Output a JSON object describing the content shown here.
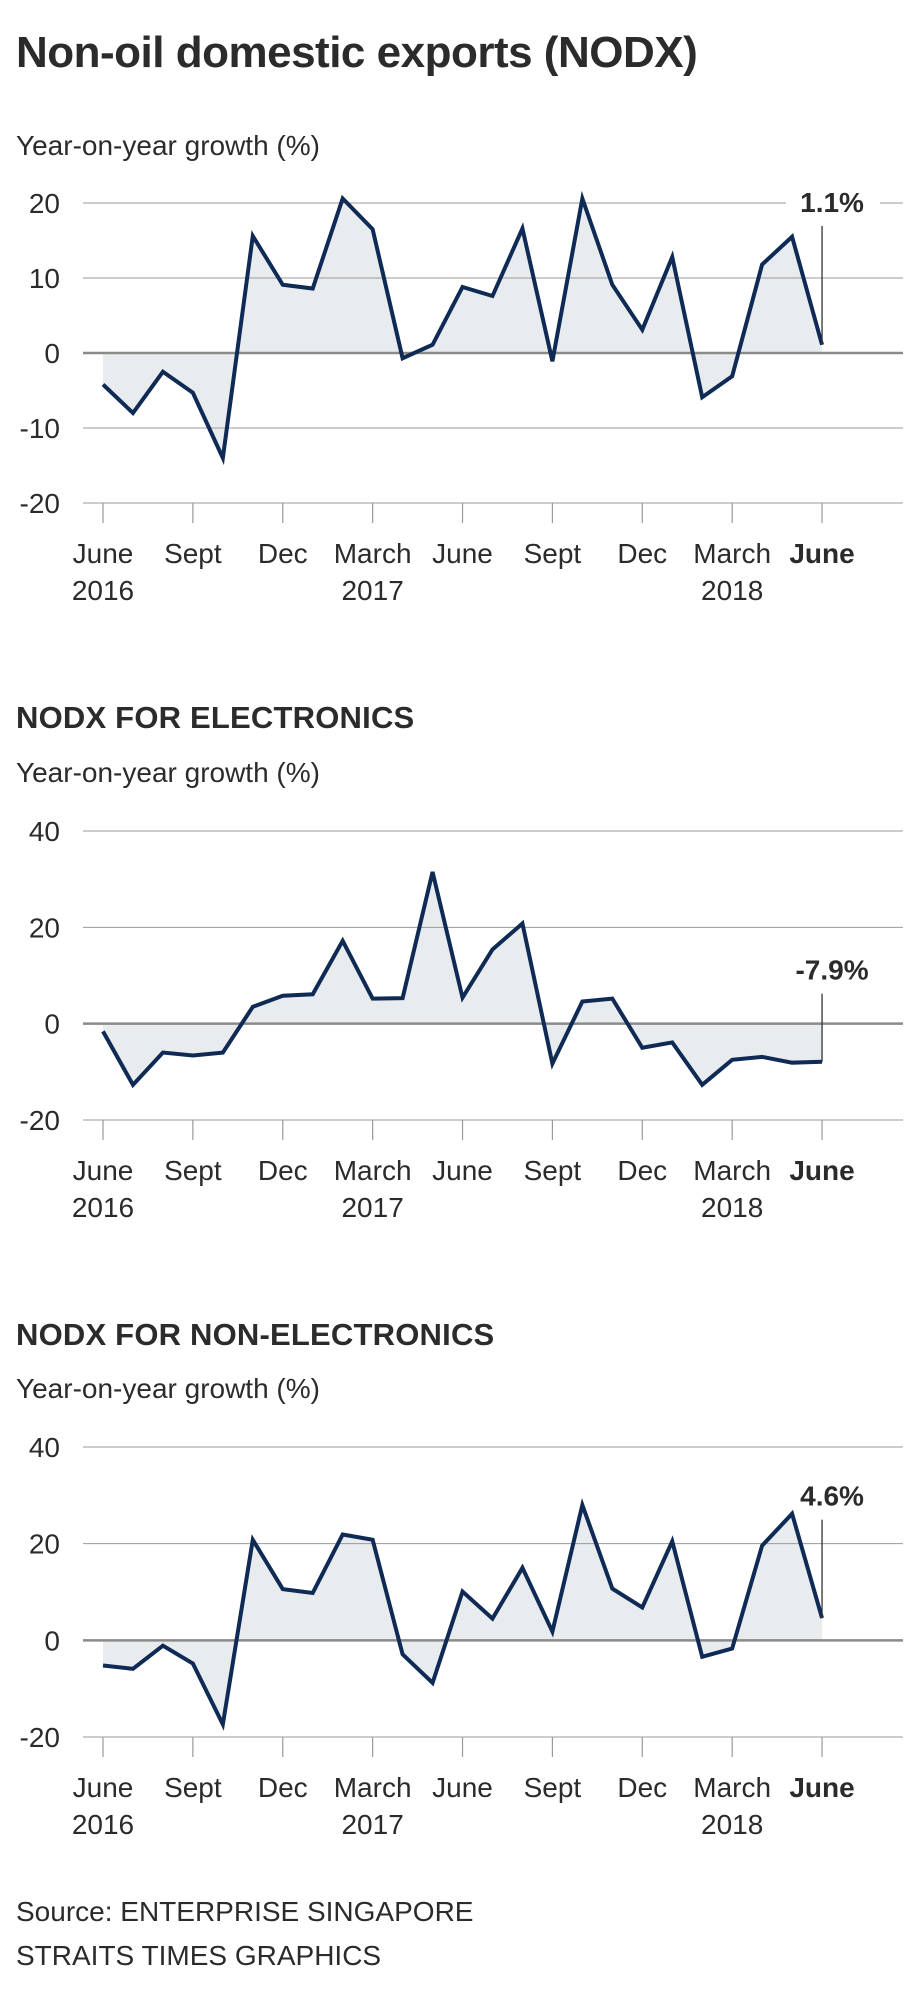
{
  "title": "Non-oil domestic exports (NODX)",
  "source": "Source: ENTERPRISE SINGAPORE",
  "credit": "STRAITS TIMES GRAPHICS",
  "colors": {
    "line": "#0f2a55",
    "fill": "#e8ecee",
    "grid": "#9a9a9a",
    "zero": "#8a8a8a",
    "text": "#2b2b2b"
  },
  "chart_data": [
    {
      "type": "area",
      "title": "",
      "ylabel": "Year-on-year growth (%)",
      "xlabel": "",
      "ylim": [
        -20,
        20
      ],
      "yticks": [
        20,
        10,
        0,
        -10,
        -20
      ],
      "grid": true,
      "x": [
        "Jun 2016",
        "Jul 2016",
        "Aug 2016",
        "Sep 2016",
        "Oct 2016",
        "Nov 2016",
        "Dec 2016",
        "Jan 2017",
        "Feb 2017",
        "Mar 2017",
        "Apr 2017",
        "May 2017",
        "Jun 2017",
        "Jul 2017",
        "Aug 2017",
        "Sep 2017",
        "Oct 2017",
        "Nov 2017",
        "Dec 2017",
        "Jan 2018",
        "Feb 2018",
        "Mar 2018",
        "Apr 2018",
        "May 2018",
        "Jun 2018"
      ],
      "values": [
        -4.2,
        -8.0,
        -2.5,
        -5.3,
        -14.0,
        15.6,
        9.1,
        8.6,
        20.6,
        16.5,
        -0.7,
        1.1,
        8.8,
        7.6,
        16.6,
        -1.1,
        20.6,
        9.1,
        3.1,
        12.8,
        -5.9,
        -3.1,
        11.8,
        15.5,
        1.1
      ],
      "xtick_labels": [
        {
          "index": 0,
          "month": "June",
          "year": "2016",
          "bold": false
        },
        {
          "index": 3,
          "month": "Sept",
          "year": "",
          "bold": false
        },
        {
          "index": 6,
          "month": "Dec",
          "year": "",
          "bold": false
        },
        {
          "index": 9,
          "month": "March",
          "year": "2017",
          "bold": false
        },
        {
          "index": 12,
          "month": "June",
          "year": "",
          "bold": false
        },
        {
          "index": 15,
          "month": "Sept",
          "year": "",
          "bold": false
        },
        {
          "index": 18,
          "month": "Dec",
          "year": "",
          "bold": false
        },
        {
          "index": 21,
          "month": "March",
          "year": "2018",
          "bold": false
        },
        {
          "index": 24,
          "month": "June",
          "year": "",
          "bold": true
        }
      ],
      "annotation": {
        "index": 24,
        "text": "1.1%"
      }
    },
    {
      "type": "area",
      "title": "NODX FOR ELECTRONICS",
      "ylabel": "Year-on-year growth (%)",
      "xlabel": "",
      "ylim": [
        -20,
        40
      ],
      "yticks": [
        40,
        20,
        0,
        -20
      ],
      "grid": true,
      "x": [
        "Jun 2016",
        "Jul 2016",
        "Aug 2016",
        "Sep 2016",
        "Oct 2016",
        "Nov 2016",
        "Dec 2016",
        "Jan 2017",
        "Feb 2017",
        "Mar 2017",
        "Apr 2017",
        "May 2017",
        "Jun 2017",
        "Jul 2017",
        "Aug 2017",
        "Sep 2017",
        "Oct 2017",
        "Nov 2017",
        "Dec 2017",
        "Jan 2018",
        "Feb 2018",
        "Mar 2018",
        "Apr 2018",
        "May 2018",
        "Jun 2018"
      ],
      "values": [
        -1.6,
        -12.7,
        -6.0,
        -6.6,
        -6.0,
        3.5,
        5.8,
        6.1,
        17.2,
        5.2,
        5.3,
        31.5,
        5.4,
        15.4,
        20.8,
        -8.3,
        4.6,
        5.2,
        -5.0,
        -3.9,
        -12.7,
        -7.5,
        -6.9,
        -8.1,
        -7.9
      ],
      "xtick_labels": [
        {
          "index": 0,
          "month": "June",
          "year": "2016",
          "bold": false
        },
        {
          "index": 3,
          "month": "Sept",
          "year": "",
          "bold": false
        },
        {
          "index": 6,
          "month": "Dec",
          "year": "",
          "bold": false
        },
        {
          "index": 9,
          "month": "March",
          "year": "2017",
          "bold": false
        },
        {
          "index": 12,
          "month": "June",
          "year": "",
          "bold": false
        },
        {
          "index": 15,
          "month": "Sept",
          "year": "",
          "bold": false
        },
        {
          "index": 18,
          "month": "Dec",
          "year": "",
          "bold": false
        },
        {
          "index": 21,
          "month": "March",
          "year": "2018",
          "bold": false
        },
        {
          "index": 24,
          "month": "June",
          "year": "",
          "bold": true
        }
      ],
      "annotation": {
        "index": 24,
        "text": "-7.9%"
      }
    },
    {
      "type": "area",
      "title": "NODX FOR NON-ELECTRONICS",
      "ylabel": "Year-on-year growth (%)",
      "xlabel": "",
      "ylim": [
        -20,
        40
      ],
      "yticks": [
        40,
        20,
        0,
        -20
      ],
      "grid": true,
      "x": [
        "Jun 2016",
        "Jul 2016",
        "Aug 2016",
        "Sep 2016",
        "Oct 2016",
        "Nov 2016",
        "Dec 2016",
        "Jan 2017",
        "Feb 2017",
        "Mar 2017",
        "Apr 2017",
        "May 2017",
        "Jun 2017",
        "Jul 2017",
        "Aug 2017",
        "Sep 2017",
        "Oct 2017",
        "Nov 2017",
        "Dec 2017",
        "Jan 2018",
        "Feb 2018",
        "Mar 2018",
        "Apr 2018",
        "May 2018",
        "Jun 2018"
      ],
      "values": [
        -5.2,
        -5.9,
        -1.1,
        -4.8,
        -17.4,
        20.8,
        10.6,
        9.8,
        21.9,
        20.8,
        -2.9,
        -8.8,
        10.1,
        4.5,
        15.0,
        1.8,
        28.0,
        10.7,
        6.8,
        20.5,
        -3.4,
        -1.7,
        19.6,
        26.2,
        4.6
      ],
      "xtick_labels": [
        {
          "index": 0,
          "month": "June",
          "year": "2016",
          "bold": false
        },
        {
          "index": 3,
          "month": "Sept",
          "year": "",
          "bold": false
        },
        {
          "index": 6,
          "month": "Dec",
          "year": "",
          "bold": false
        },
        {
          "index": 9,
          "month": "March",
          "year": "2017",
          "bold": false
        },
        {
          "index": 12,
          "month": "June",
          "year": "",
          "bold": false
        },
        {
          "index": 15,
          "month": "Sept",
          "year": "",
          "bold": false
        },
        {
          "index": 18,
          "month": "Dec",
          "year": "",
          "bold": false
        },
        {
          "index": 21,
          "month": "March",
          "year": "2018",
          "bold": false
        },
        {
          "index": 24,
          "month": "June",
          "year": "",
          "bold": true
        }
      ],
      "annotation": {
        "index": 24,
        "text": "4.6%"
      }
    }
  ]
}
